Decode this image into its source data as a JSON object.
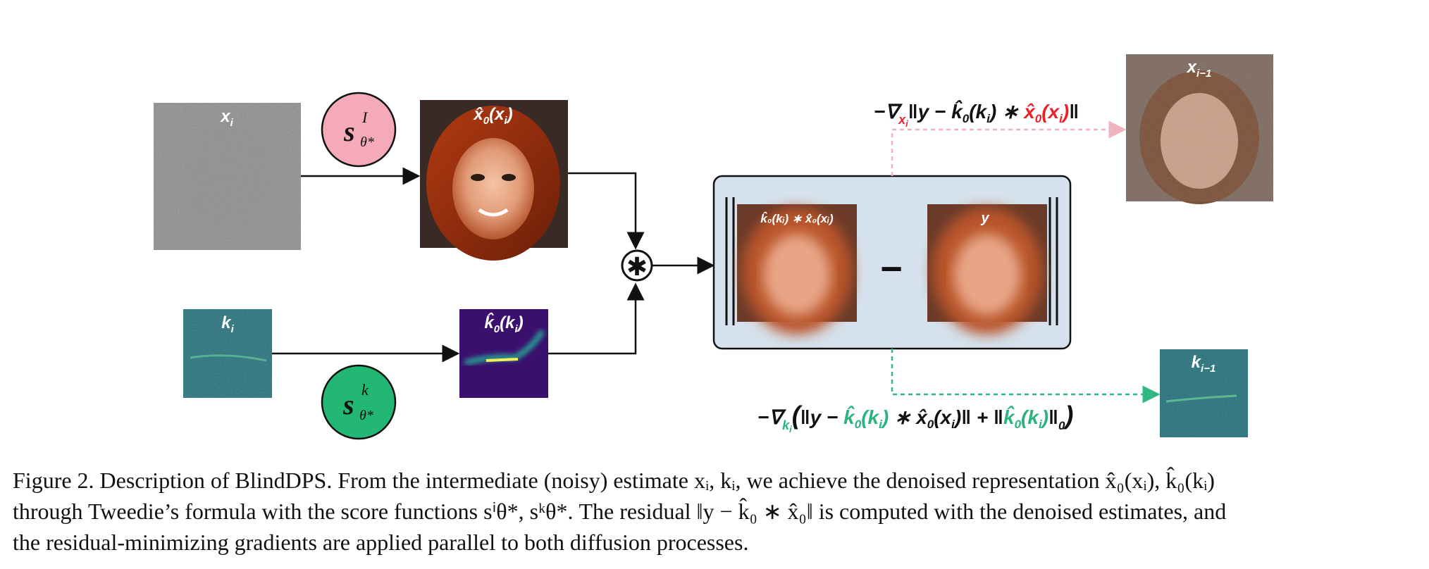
{
  "figure": {
    "labels": {
      "x_i": "x",
      "x_i_sub": "i",
      "score_image_s": "s",
      "score_image_sup": "I",
      "score_image_sub": "θ*",
      "x0hat": "x̂",
      "x0hat_sub": "0",
      "x0hat_arg": "(x",
      "x0hat_arg_sub": "i",
      "x0hat_close": ")",
      "k_i": "k",
      "k_i_sub": "i",
      "score_kernel_s": "s",
      "score_kernel_sup": "k",
      "score_kernel_sub": "θ*",
      "k0hat": "k̂",
      "k0hat_sub": "0",
      "k0hat_arg": "(k",
      "k0hat_arg_sub": "i",
      "k0hat_close": ")",
      "conv_symbol": "✱",
      "residual_left_label": "k̂₀(kᵢ) ∗ x̂₀(xᵢ)",
      "residual_right_label": "y",
      "minus": "−",
      "x_prev": "x",
      "x_prev_sub": "i−1",
      "k_prev": "k",
      "k_prev_sub": "i−1"
    },
    "grad_top": {
      "prefix": "−∇",
      "var": "x",
      "var_sub": "i",
      "norm_open": "‖y − k̂",
      "k_sub": "0",
      "k_arg": "(k",
      "k_arg_sub": "i",
      "k_arg_close": ") ∗ ",
      "x_red": "x̂",
      "x_red_sub": "0",
      "x_red_arg": "(x",
      "x_red_arg_sub": "i",
      "x_red_close": ")",
      "norm_close": "‖"
    },
    "grad_bottom": {
      "prefix": "−∇",
      "var": "k",
      "var_sub": "i",
      "paren_open": "(",
      "norm_open": "‖y − ",
      "k_green": "k̂",
      "k_green_sub": "0",
      "k_green_arg": "(k",
      "k_green_arg_sub": "i",
      "k_green_close": ")",
      "middle": " ∗ x̂",
      "x_sub": "0",
      "x_arg": "(x",
      "x_arg_sub": "i",
      "x_close": ")‖  +  ‖",
      "k2_green": "k̂",
      "k2_green_sub": "0",
      "k2_green_arg": "(k",
      "k2_green_arg_sub": "i",
      "k2_green_close": ")",
      "norm_close": "‖",
      "norm_sub": "0",
      "paren_close": ")"
    },
    "colors": {
      "red": "#e8242b",
      "green": "#2ab37e",
      "pink_circle": "#f4aab8",
      "green_circle": "#22b873",
      "box_fill": "#d5e1ec",
      "pink_arrow": "#f2b3c0",
      "green_arrow": "#2fb882"
    }
  },
  "caption": {
    "line1": "Figure 2. Description of BlindDPS. From the intermediate (noisy) estimate xᵢ, kᵢ, we achieve the denoised representation x̂₀(xᵢ), k̂₀(kᵢ)",
    "line2": "through Tweedie’s formula with the score functions sⁱθ*, sᵏθ*. The residual ‖y − k̂₀ ∗ x̂₀‖ is computed with the denoised estimates, and",
    "line3": "the residual-minimizing gradients are applied parallel to both diffusion processes."
  }
}
